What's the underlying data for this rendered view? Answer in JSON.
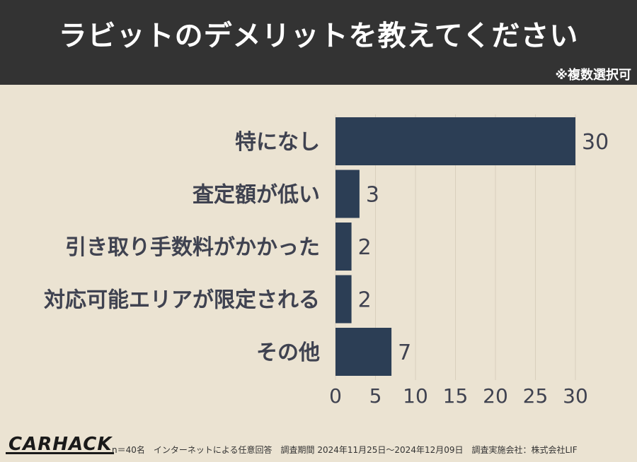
{
  "header": {
    "title": "ラビットのデメリットを教えてください",
    "note": "※複数選択可"
  },
  "colors": {
    "header_bg": "#333333",
    "chart_bg": "#ebe3d2",
    "bar": "#2c3e55",
    "text": "#3f4250",
    "grid": "#d8cfbd"
  },
  "chart_data": {
    "type": "bar",
    "orientation": "horizontal",
    "categories": [
      "特になし",
      "査定額が低い",
      "引き取り手数料がかかった",
      "対応可能エリアが限定される",
      "その他"
    ],
    "values": [
      30,
      3,
      2,
      2,
      7
    ],
    "xlim": [
      0,
      30
    ],
    "xticks": [
      0,
      5,
      10,
      15,
      20,
      25,
      30
    ],
    "grid": true
  },
  "footer": {
    "logo": "CARHACK",
    "text": "n＝40名　インターネットによる任意回答　調査期間 2024年11月25日〜2024年12月09日　調査実施会社：株式会社LIF"
  }
}
